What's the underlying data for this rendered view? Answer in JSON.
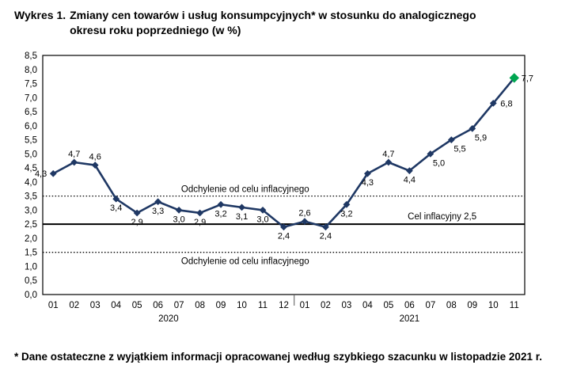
{
  "title": {
    "prefix": "Wykres 1.",
    "text": "Zmiany cen towarów i usług konsumpcyjnych* w stosunku do analogicznego okresu roku poprzedniego (w %)"
  },
  "footnote": "* Dane ostateczne z wyjątkiem informacji opracowanej według szybkiego szacunku w listopadzie 2021 r.",
  "chart_data": {
    "type": "line",
    "x": [
      "01",
      "02",
      "03",
      "04",
      "05",
      "06",
      "07",
      "08",
      "09",
      "10",
      "11",
      "12",
      "01",
      "02",
      "03",
      "04",
      "05",
      "06",
      "07",
      "08",
      "09",
      "10",
      "11"
    ],
    "values": [
      4.3,
      4.7,
      4.6,
      3.4,
      2.9,
      3.3,
      3.0,
      2.9,
      3.2,
      3.1,
      3.0,
      2.4,
      2.6,
      2.4,
      3.2,
      4.3,
      4.7,
      4.4,
      5.0,
      5.5,
      5.9,
      6.8,
      7.7
    ],
    "point_labels": [
      "4,3",
      "4,7",
      "4,6",
      "3,4",
      "2,9",
      "3,3",
      "3,0",
      "2,9",
      "3,2",
      "3,1",
      "3,0",
      "2,4",
      "2,6",
      "2,4",
      "3,2",
      "4,3",
      "4,7",
      "4,4",
      "5,0",
      "5,5",
      "5,9",
      "6,8",
      "7,7"
    ],
    "label_positions": [
      "left",
      "above",
      "above",
      "below",
      "below",
      "below",
      "below",
      "below",
      "below",
      "below",
      "below",
      "below",
      "above",
      "below",
      "below",
      "below",
      "above",
      "below",
      "below-right",
      "below-right",
      "below-right",
      "right",
      "right"
    ],
    "year_groups": [
      {
        "label": "2020",
        "count": 12
      },
      {
        "label": "2021",
        "count": 11
      }
    ],
    "ylim": [
      0,
      8.5
    ],
    "ytick_step": 0.5,
    "reference_lines": [
      {
        "value": 3.5,
        "style": "dotted",
        "label": "Odchylenie od celu inflacyjnego",
        "label_side": "center-above"
      },
      {
        "value": 2.5,
        "style": "solid",
        "label": "Cel inflacyjny 2,5",
        "label_side": "right-above"
      },
      {
        "value": 1.5,
        "style": "dotted",
        "label": "Odchylenie od celu inflacyjnego",
        "label_side": "center-below"
      }
    ],
    "colors": {
      "line": "#1f3864",
      "marker": "#1f3864",
      "last_marker": "#00a651",
      "reference": "#000000",
      "text": "#000000"
    },
    "grid": false,
    "legend": false,
    "title": "Zmiany cen towarów i usług konsumpcyjnych w stosunku do analogicznego okresu roku poprzedniego (w %)",
    "xlabel": "",
    "ylabel": ""
  }
}
